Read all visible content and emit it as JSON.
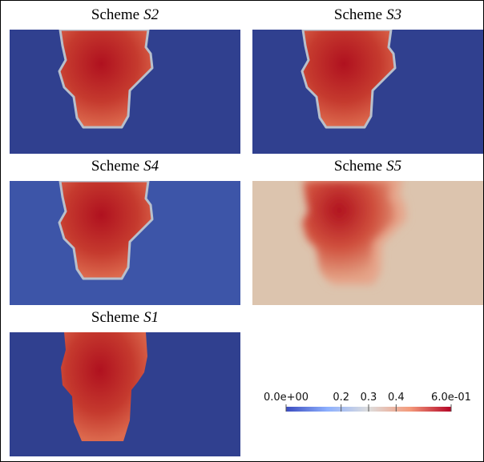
{
  "panels": [
    {
      "prefix": "Scheme",
      "scheme": "S2"
    },
    {
      "prefix": "Scheme",
      "scheme": "S3"
    },
    {
      "prefix": "Scheme",
      "scheme": "S4"
    },
    {
      "prefix": "Scheme",
      "scheme": "S5"
    },
    {
      "prefix": "Scheme",
      "scheme": "S1"
    }
  ],
  "colorbar": {
    "range": [
      0,
      0.6
    ],
    "ticks": [
      {
        "value": 0,
        "label": "0.0e+00"
      },
      0.2,
      0.3,
      0.4,
      {
        "value": 0.6,
        "label": "6.0e-01"
      }
    ]
  }
}
